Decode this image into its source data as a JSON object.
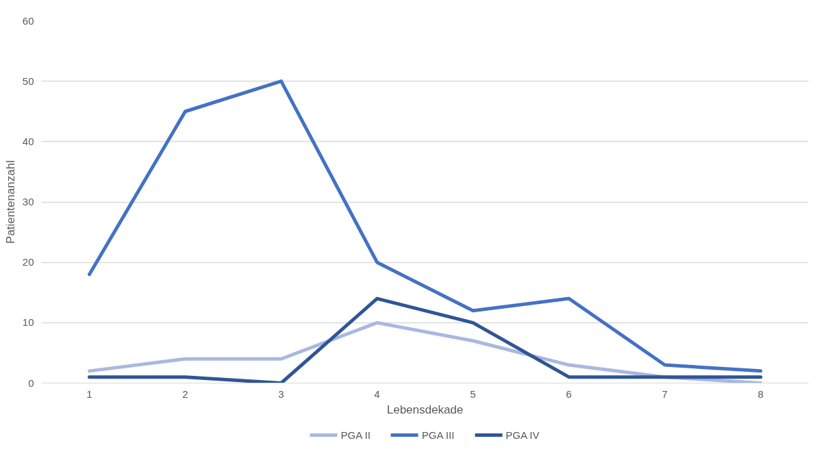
{
  "chart_data": {
    "type": "line",
    "xlabel": "Lebensdekade",
    "ylabel": "Patientenanzahl",
    "categories": [
      "1",
      "2",
      "3",
      "4",
      "5",
      "6",
      "7",
      "8"
    ],
    "series": [
      {
        "name": "PGA II",
        "color": "#a9b8df",
        "values": [
          2,
          4,
          4,
          10,
          7,
          3,
          1,
          0
        ]
      },
      {
        "name": "PGA III",
        "color": "#4472c4",
        "values": [
          18,
          45,
          50,
          20,
          12,
          14,
          3,
          2
        ]
      },
      {
        "name": "PGA IV",
        "color": "#2f5597",
        "values": [
          1,
          1,
          0,
          14,
          10,
          1,
          1,
          1
        ]
      }
    ],
    "ylim": [
      0,
      60
    ],
    "yticks": [
      0,
      10,
      20,
      30,
      40,
      50,
      60
    ],
    "grid": "y",
    "legend": "bottom",
    "marker": "none",
    "line_style": "solid"
  }
}
